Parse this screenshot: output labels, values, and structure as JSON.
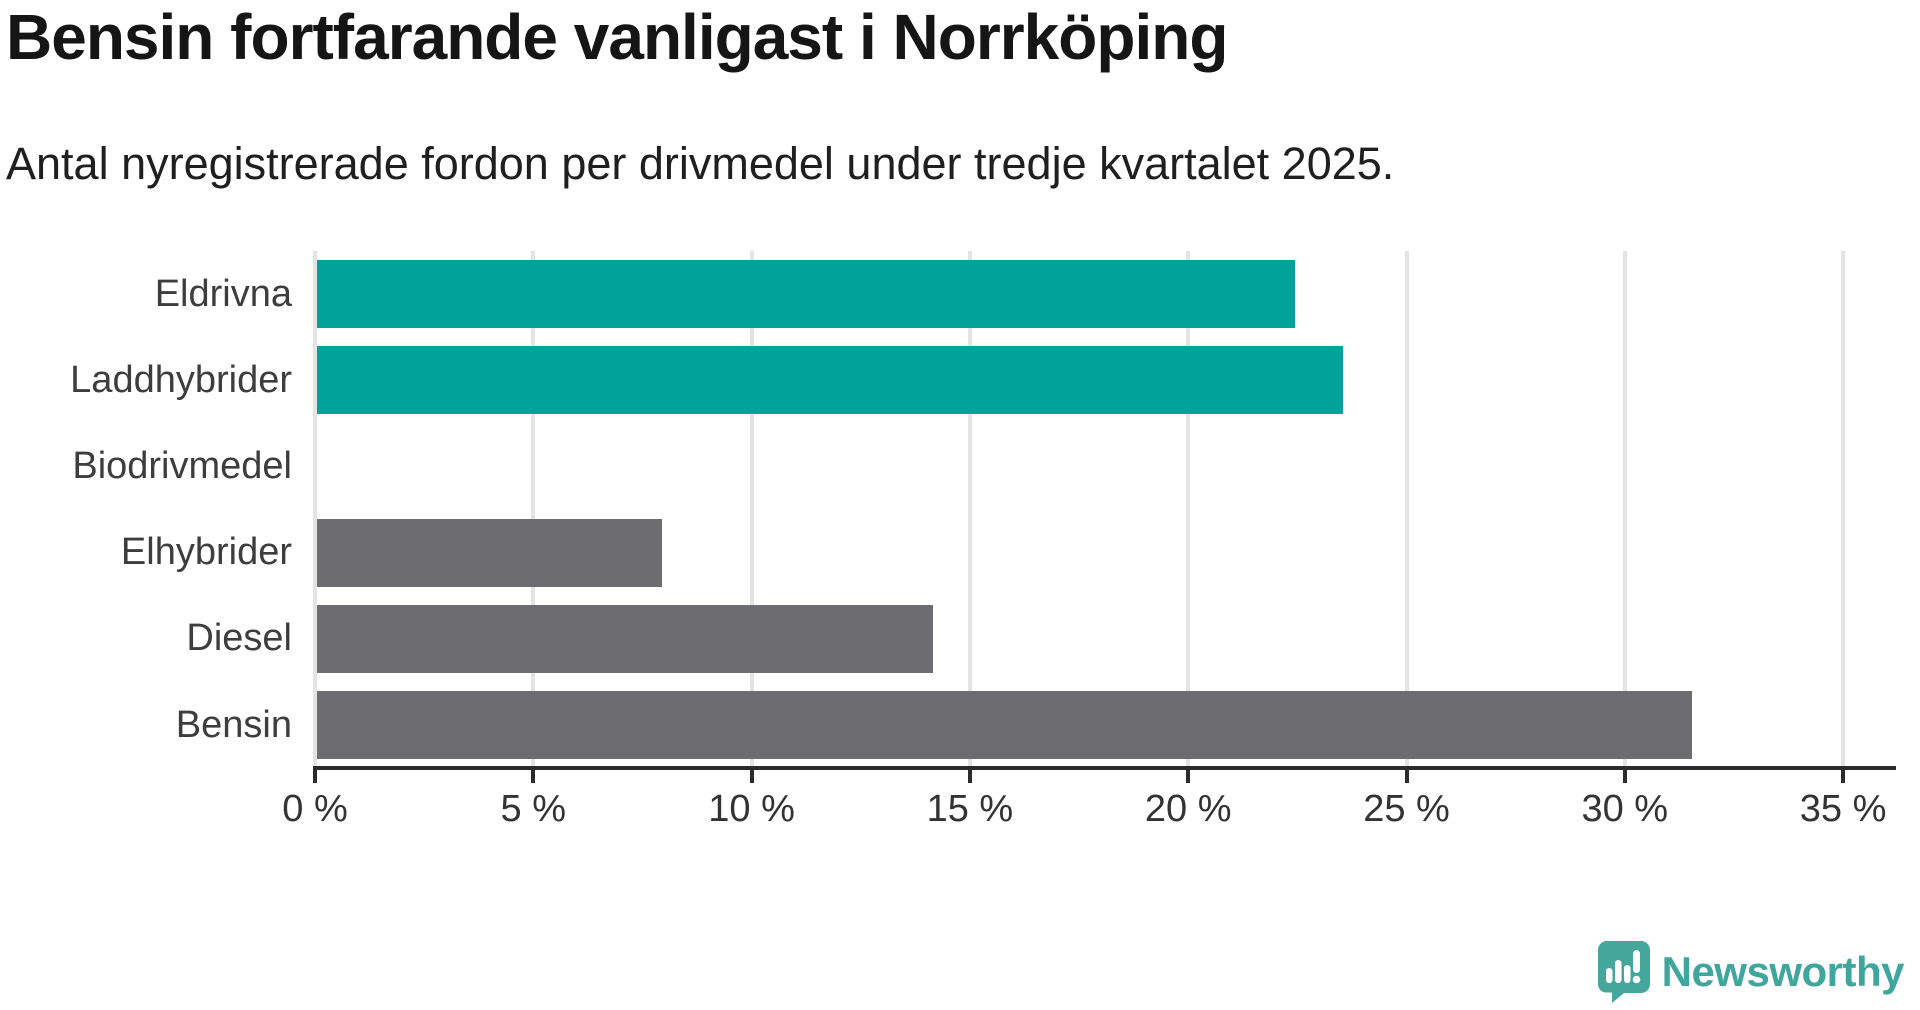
{
  "chart_data": {
    "type": "bar",
    "orientation": "horizontal",
    "title": "Bensin fortfarande vanligast i Norrköping",
    "subtitle": "Antal nyregistrerade fordon per drivmedel under tredje kvartalet 2025.",
    "categories": [
      "Eldrivna",
      "Laddhybrider",
      "Biodrivmedel",
      "Elhybrider",
      "Diesel",
      "Bensin"
    ],
    "values": [
      22.4,
      23.5,
      0,
      7.9,
      14.1,
      31.5
    ],
    "unit": "%",
    "bar_colors": [
      "#00a299",
      "#00a299",
      "#6c6c71",
      "#6c6c71",
      "#6c6c71",
      "#6c6c71"
    ],
    "highlight_color": "#00a299",
    "default_color": "#6c6c71",
    "xlabel": "",
    "ylabel": "",
    "xlim": [
      0,
      36.2
    ],
    "x_ticks": [
      0,
      5,
      10,
      15,
      20,
      25,
      30,
      35
    ],
    "x_tick_labels": [
      "0 %",
      "5 %",
      "10 %",
      "15 %",
      "20 %",
      "25 %",
      "30 %",
      "35 %"
    ],
    "grid": "vertical-only",
    "legend": "none"
  },
  "branding": {
    "logo_text": "Newsworthy",
    "logo_color": "#3fa69d",
    "logo_icon": "newsworthy-speech-bubble-bar-chart-icon",
    "logo_icon_color": "#45a69c"
  }
}
